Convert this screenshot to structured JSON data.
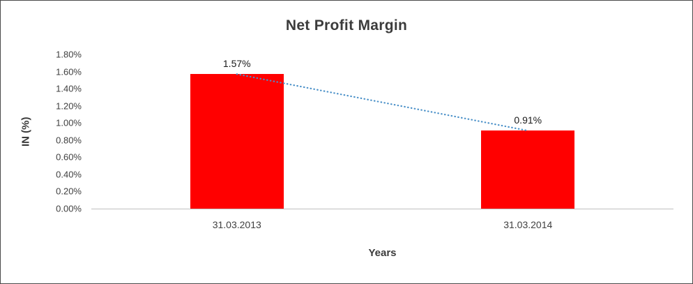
{
  "chart_data": {
    "type": "bar",
    "title": "Net Profit Margin",
    "xlabel": "Years",
    "ylabel": "IN (%)",
    "categories": [
      "31.03.2013",
      "31.03.2014"
    ],
    "values": [
      1.57,
      0.91
    ],
    "value_labels": [
      "1.57%",
      "0.91%"
    ],
    "ylim": [
      0,
      1.8
    ],
    "ytick_step": 0.2,
    "ytick_labels": [
      "0.00%",
      "0.20%",
      "0.40%",
      "0.60%",
      "0.80%",
      "1.00%",
      "1.20%",
      "1.40%",
      "1.60%",
      "1.80%"
    ],
    "bar_color": "#ff0000",
    "axis_line_color": "#bfbfbf",
    "trendline": {
      "kind": "linear",
      "style": "dotted",
      "color": "#4a90c8"
    },
    "grid": false,
    "legend": "none"
  }
}
